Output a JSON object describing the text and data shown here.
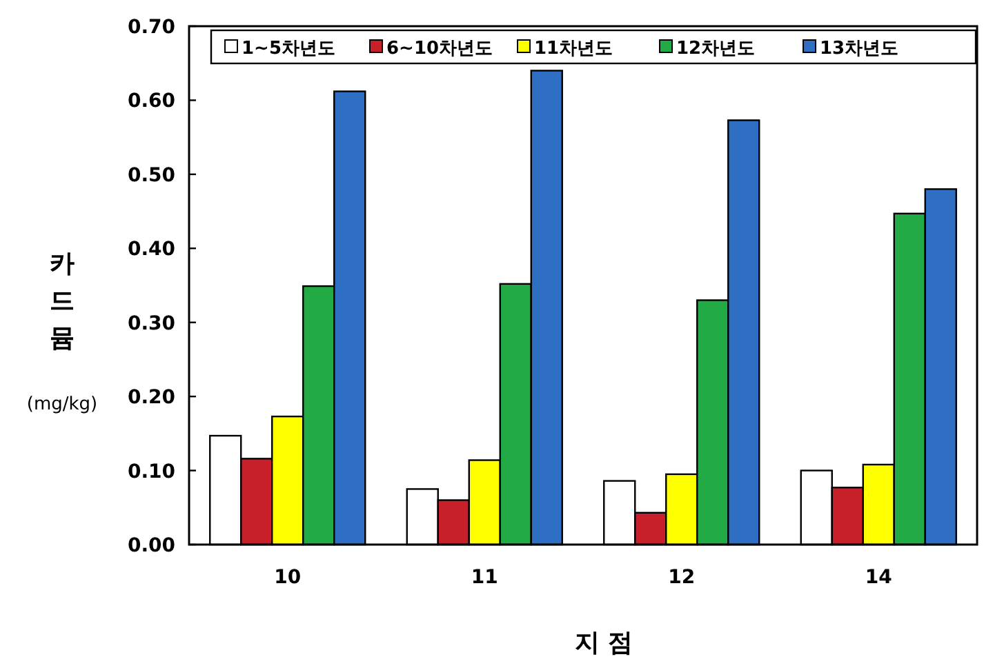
{
  "chart_data": {
    "type": "bar",
    "xlabel": "지 점",
    "ylabel": "카드뮴 (mg/kg)",
    "categories": [
      "10",
      "11",
      "12",
      "14"
    ],
    "series": [
      {
        "name": "1~5차년도",
        "color": "#ffffff",
        "values": [
          0.147,
          0.075,
          0.086,
          0.1
        ]
      },
      {
        "name": "6~10차년도",
        "color": "#c8202a",
        "values": [
          0.116,
          0.06,
          0.043,
          0.077
        ]
      },
      {
        "name": "11차년도",
        "color": "#ffff00",
        "values": [
          0.173,
          0.114,
          0.095,
          0.108
        ]
      },
      {
        "name": "12차년도",
        "color": "#22aa44",
        "values": [
          0.349,
          0.352,
          0.33,
          0.447
        ]
      },
      {
        "name": "13차년도",
        "color": "#2e6fc4",
        "values": [
          0.612,
          0.64,
          0.573,
          0.48
        ]
      }
    ],
    "ylim": [
      0,
      0.7
    ],
    "yticks": [
      {
        "value": 0,
        "label": "0.00"
      },
      {
        "value": 0.1,
        "label": "0.10"
      },
      {
        "value": 0.2,
        "label": "0.20"
      },
      {
        "value": 0.3,
        "label": "0.30"
      },
      {
        "value": 0.4,
        "label": "0.40"
      },
      {
        "value": 0.5,
        "label": "0.50"
      },
      {
        "value": 0.6,
        "label": "0.60"
      },
      {
        "value": 0.7,
        "label": "0.70"
      }
    ],
    "legend": "top",
    "grid": false
  }
}
